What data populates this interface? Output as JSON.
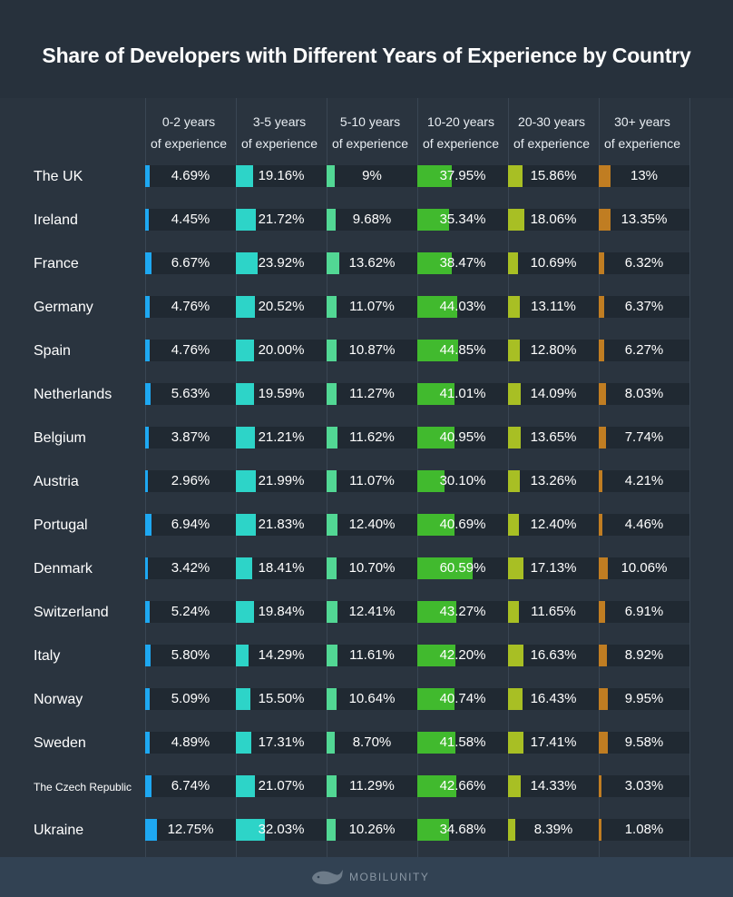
{
  "colors": {
    "background": "#27313c",
    "track": "#202932",
    "series": [
      "#1ea8f2",
      "#2dd4c8",
      "#52d794",
      "#41ba2e",
      "#a8bf24",
      "#c07d22"
    ]
  },
  "footer": {
    "brand": "MOBILUNITY",
    "logo_icon": "whale-icon"
  },
  "chart_data": {
    "type": "table",
    "title": "Share of Developers with Different Years of Experience by Country",
    "columns": [
      [
        "0-2 years",
        "of experience"
      ],
      [
        "3-5 years",
        "of experience"
      ],
      [
        "5-10 years",
        "of experience"
      ],
      [
        "10-20 years",
        "of experience"
      ],
      [
        "20-30 years",
        "of experience"
      ],
      [
        "30+ years",
        "of experience"
      ]
    ],
    "rows": [
      {
        "country": "The UK",
        "values": [
          4.69,
          19.16,
          9,
          37.95,
          15.86,
          13
        ],
        "labels": [
          "4.69%",
          "19.16%",
          "9%",
          "37.95%",
          "15.86%",
          "13%"
        ]
      },
      {
        "country": "Ireland",
        "values": [
          4.45,
          21.72,
          9.68,
          35.34,
          18.06,
          13.35
        ],
        "labels": [
          "4.45%",
          "21.72%",
          "9.68%",
          "35.34%",
          "18.06%",
          "13.35%"
        ]
      },
      {
        "country": "France",
        "values": [
          6.67,
          23.92,
          13.62,
          38.47,
          10.69,
          6.32
        ],
        "labels": [
          "6.67%",
          "23.92%",
          "13.62%",
          "38.47%",
          "10.69%",
          "6.32%"
        ]
      },
      {
        "country": "Germany",
        "values": [
          4.76,
          20.52,
          11.07,
          44.03,
          13.11,
          6.37
        ],
        "labels": [
          "4.76%",
          "20.52%",
          "11.07%",
          "44.03%",
          "13.11%",
          "6.37%"
        ]
      },
      {
        "country": "Spain",
        "values": [
          4.76,
          20.0,
          10.87,
          44.85,
          12.8,
          6.27
        ],
        "labels": [
          "4.76%",
          "20.00%",
          "10.87%",
          "44.85%",
          "12.80%",
          "6.27%"
        ]
      },
      {
        "country": "Netherlands",
        "values": [
          5.63,
          19.59,
          11.27,
          41.01,
          14.09,
          8.03
        ],
        "labels": [
          "5.63%",
          "19.59%",
          "11.27%",
          "41.01%",
          "14.09%",
          "8.03%"
        ]
      },
      {
        "country": "Belgium",
        "values": [
          3.87,
          21.21,
          11.62,
          40.95,
          13.65,
          7.74
        ],
        "labels": [
          "3.87%",
          "21.21%",
          "11.62%",
          "40.95%",
          "13.65%",
          "7.74%"
        ]
      },
      {
        "country": "Austria",
        "values": [
          2.96,
          21.99,
          11.07,
          30.1,
          13.26,
          4.21
        ],
        "labels": [
          "2.96%",
          "21.99%",
          "11.07%",
          "30.10%",
          "13.26%",
          "4.21%"
        ]
      },
      {
        "country": "Portugal",
        "values": [
          6.94,
          21.83,
          12.4,
          40.69,
          12.4,
          4.46
        ],
        "labels": [
          "6.94%",
          "21.83%",
          "12.40%",
          "40.69%",
          "12.40%",
          "4.46%"
        ]
      },
      {
        "country": "Denmark",
        "values": [
          3.42,
          18.41,
          10.7,
          60.59,
          17.13,
          10.06
        ],
        "labels": [
          "3.42%",
          "18.41%",
          "10.70%",
          "60.59%",
          "17.13%",
          "10.06%"
        ]
      },
      {
        "country": "Switzerland",
        "values": [
          5.24,
          19.84,
          12.41,
          43.27,
          11.65,
          6.91
        ],
        "labels": [
          "5.24%",
          "19.84%",
          "12.41%",
          "43.27%",
          "11.65%",
          "6.91%"
        ]
      },
      {
        "country": "Italy",
        "values": [
          5.8,
          14.29,
          11.61,
          42.2,
          16.63,
          8.92
        ],
        "labels": [
          "5.80%",
          "14.29%",
          "11.61%",
          "42.20%",
          "16.63%",
          "8.92%"
        ]
      },
      {
        "country": "Norway",
        "values": [
          5.09,
          15.5,
          10.64,
          40.74,
          16.43,
          9.95
        ],
        "labels": [
          "5.09%",
          "15.50%",
          "10.64%",
          "40.74%",
          "16.43%",
          "9.95%"
        ]
      },
      {
        "country": "Sweden",
        "values": [
          4.89,
          17.31,
          8.7,
          41.58,
          17.41,
          9.58
        ],
        "labels": [
          "4.89%",
          "17.31%",
          "8.70%",
          "41.58%",
          "17.41%",
          "9.58%"
        ]
      },
      {
        "country": "The Czech Republic",
        "values": [
          6.74,
          21.07,
          11.29,
          42.66,
          14.33,
          3.03
        ],
        "labels": [
          "6.74%",
          "21.07%",
          "11.29%",
          "42.66%",
          "14.33%",
          "3.03%"
        ]
      },
      {
        "country": "Ukraine",
        "values": [
          12.75,
          32.03,
          10.26,
          34.68,
          8.39,
          1.08
        ],
        "labels": [
          "12.75%",
          "32.03%",
          "10.26%",
          "34.68%",
          "8.39%",
          "1.08%"
        ]
      }
    ]
  }
}
